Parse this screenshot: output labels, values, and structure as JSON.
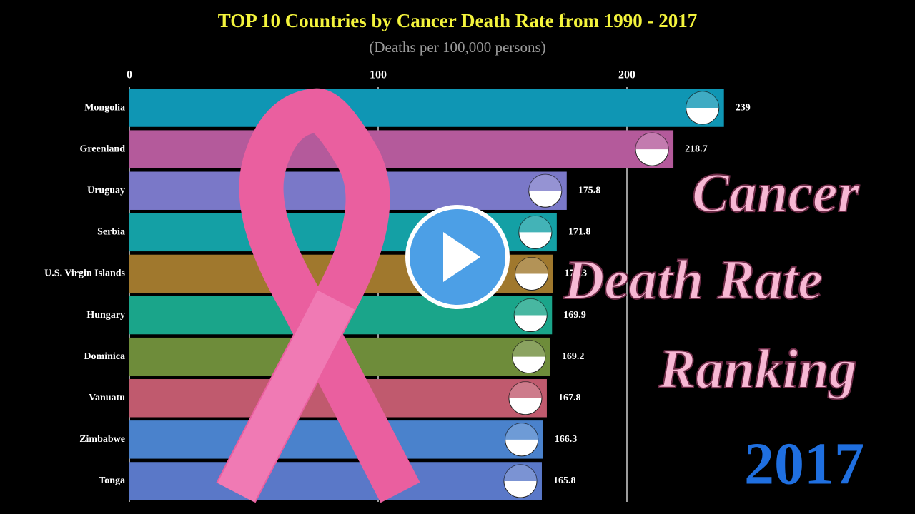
{
  "chart_data": {
    "type": "bar",
    "orientation": "horizontal",
    "title": "TOP 10 Countries by Cancer Death Rate from 1990 - 2017",
    "subtitle": "(Deaths per 100,000 persons)",
    "categories": [
      "Mongolia",
      "Greenland",
      "Uruguay",
      "Serbia",
      "U.S. Virgin Islands",
      "Hungary",
      "Dominica",
      "Vanuatu",
      "Zimbabwe",
      "Tonga"
    ],
    "values": [
      239,
      218.7,
      175.8,
      171.8,
      170.3,
      169.9,
      169.2,
      167.8,
      166.3,
      165.8
    ],
    "colors": [
      "#0f96b4",
      "#b45a9b",
      "#7a78c8",
      "#14a0a5",
      "#a0782d",
      "#1aa58a",
      "#6e8c3a",
      "#c05a6e",
      "#4a82cc",
      "#5a78c8"
    ],
    "xlim": [
      0,
      250
    ],
    "xticks": [
      0,
      100,
      200
    ],
    "grid": true,
    "annotations": [
      "Cancer",
      "Death Rate",
      "Ranking"
    ],
    "year": "2017"
  }
}
